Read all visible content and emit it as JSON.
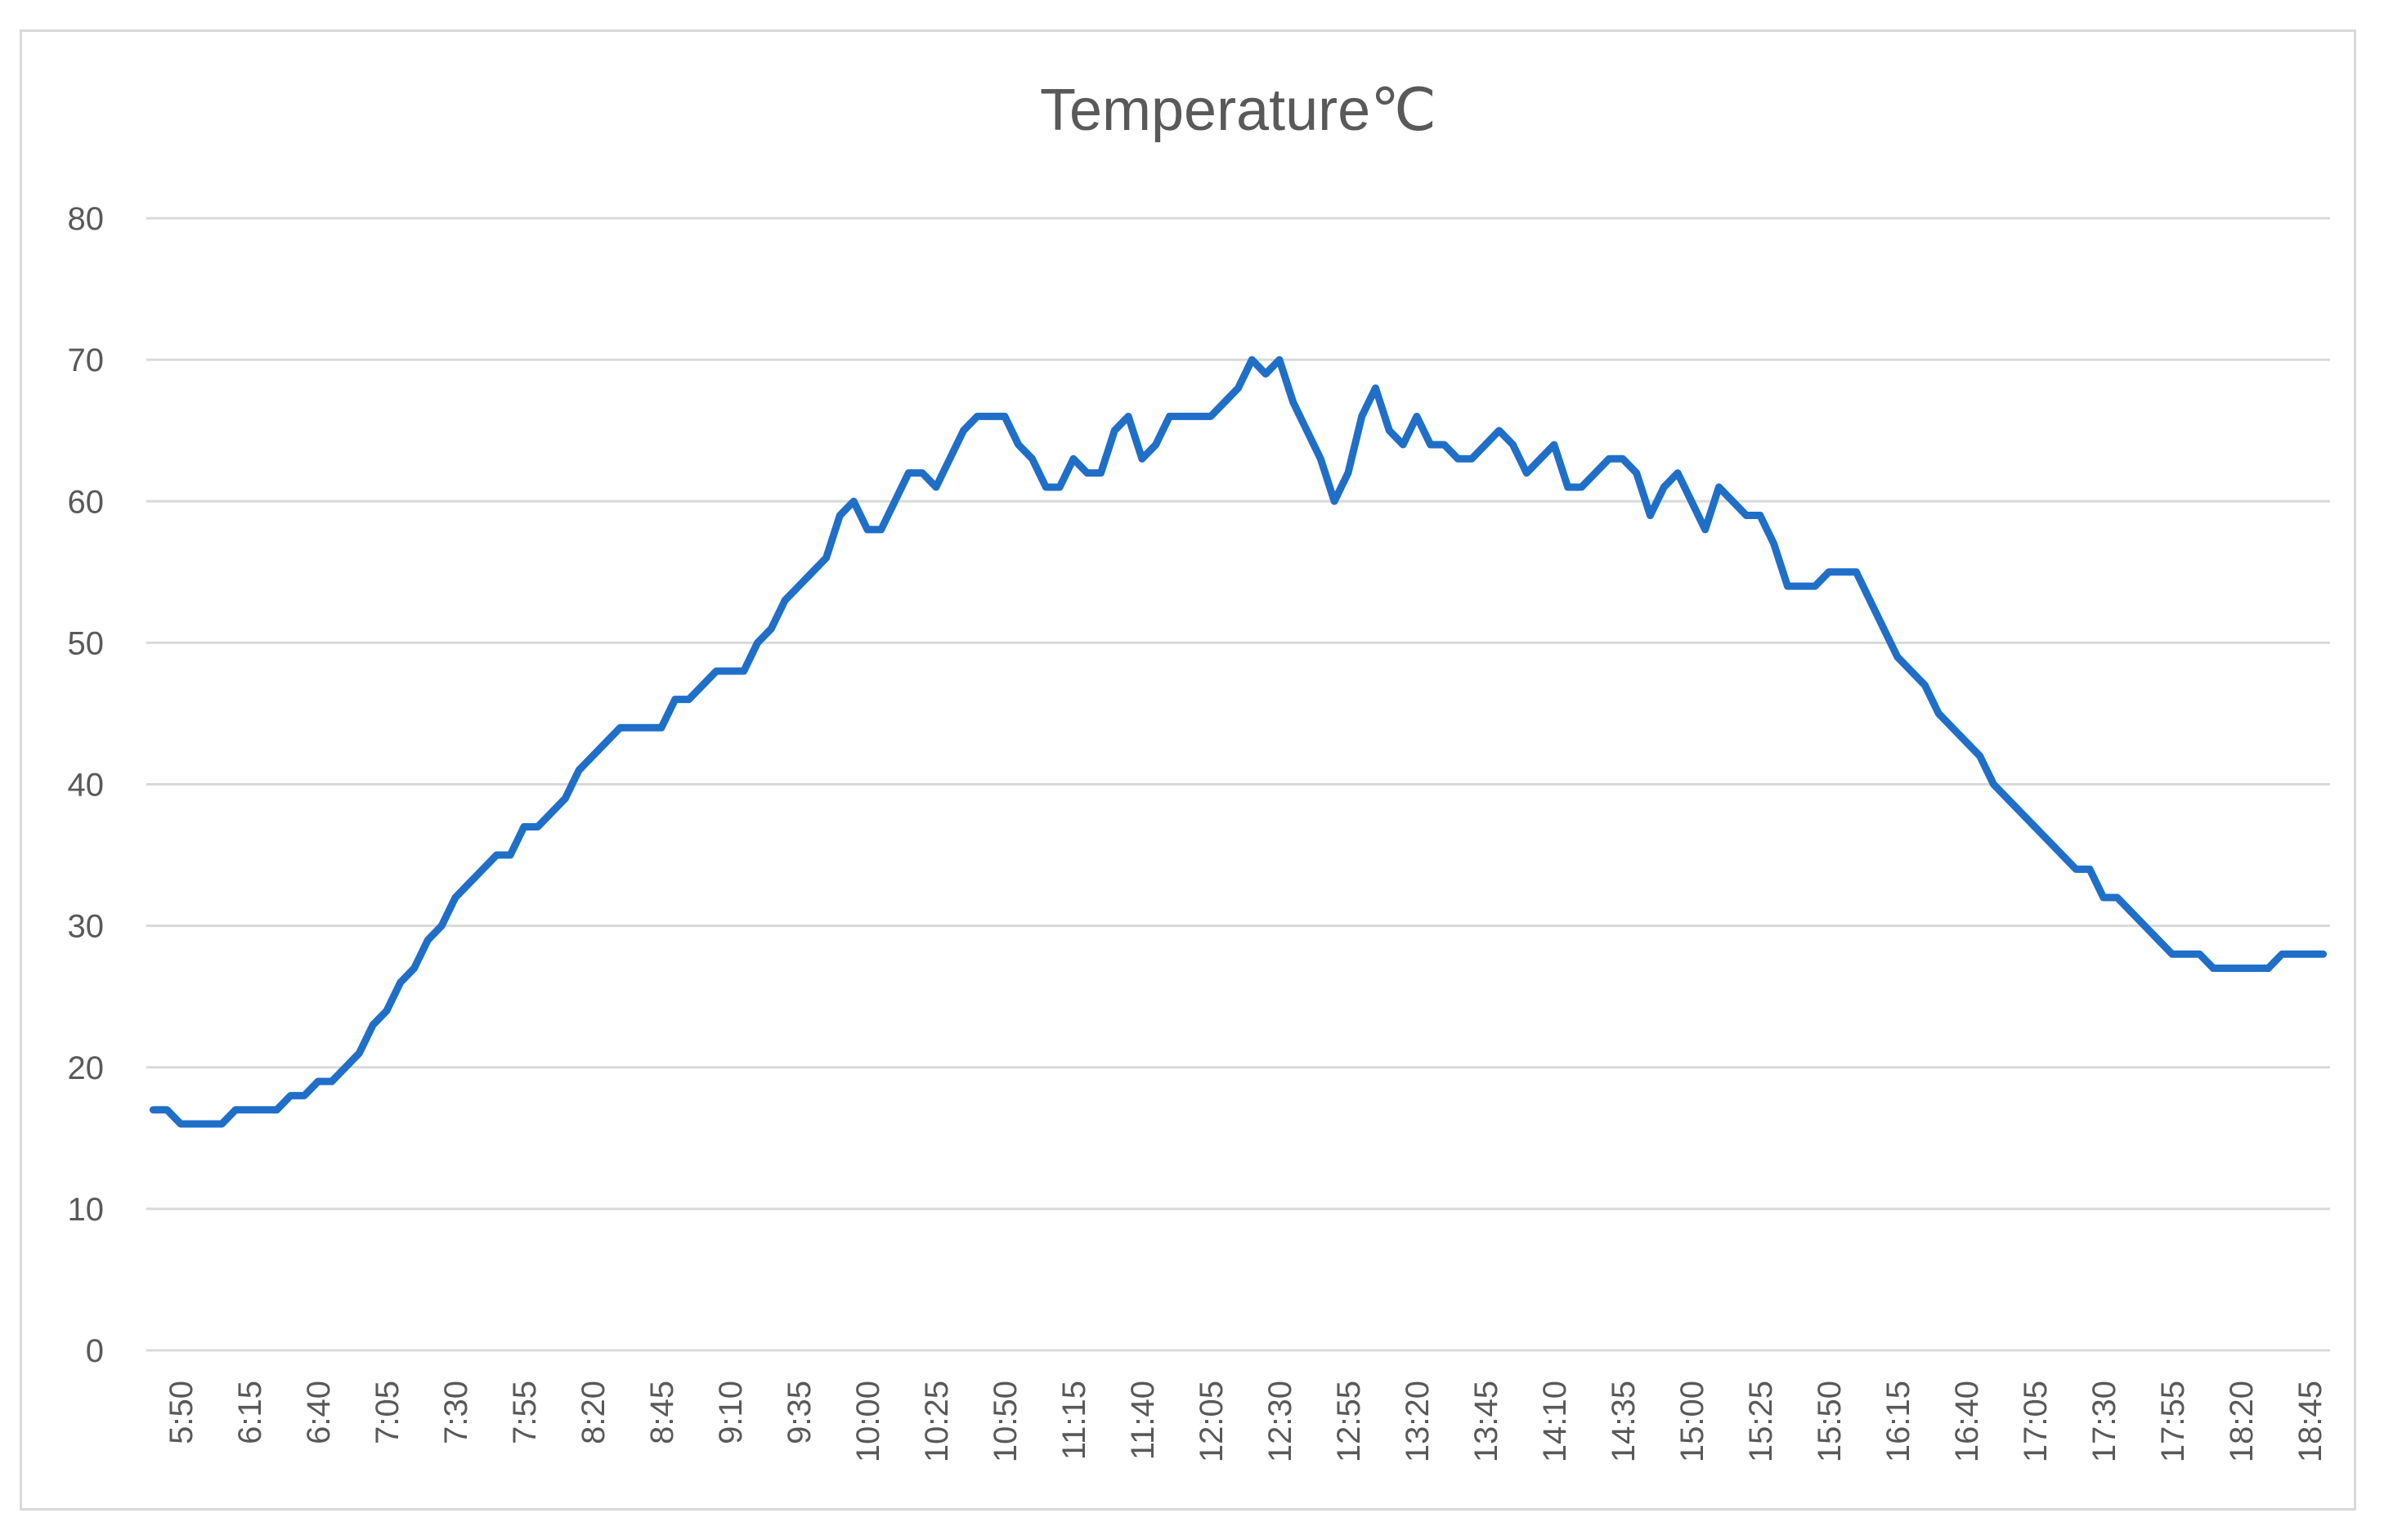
{
  "chart_data": {
    "type": "line",
    "title": "Temperature℃",
    "xlabel": "",
    "ylabel": "",
    "ylim": [
      0,
      80
    ],
    "yticks": [
      0,
      10,
      20,
      30,
      40,
      50,
      60,
      70,
      80
    ],
    "grid": true,
    "legend": "none",
    "line_color": "#1f6fc9",
    "x_tick_labels": [
      "5:50",
      "6:15",
      "6:40",
      "7:05",
      "7:30",
      "7:55",
      "8:20",
      "8:45",
      "9:10",
      "9:35",
      "10:00",
      "10:25",
      "10:50",
      "11:15",
      "11:40",
      "12:05",
      "12:30",
      "12:55",
      "13:20",
      "13:45",
      "14:10",
      "14:35",
      "15:00",
      "15:25",
      "15:50",
      "16:15",
      "16:40",
      "17:05",
      "17:30",
      "17:55",
      "18:20",
      "18:45"
    ],
    "x_tick_every": 5,
    "x": [
      "5:40",
      "5:45",
      "5:50",
      "5:55",
      "6:00",
      "6:05",
      "6:10",
      "6:15",
      "6:20",
      "6:25",
      "6:30",
      "6:35",
      "6:40",
      "6:45",
      "6:50",
      "6:55",
      "7:00",
      "7:05",
      "7:10",
      "7:15",
      "7:20",
      "7:25",
      "7:30",
      "7:35",
      "7:40",
      "7:45",
      "7:50",
      "7:55",
      "8:00",
      "8:05",
      "8:10",
      "8:15",
      "8:20",
      "8:25",
      "8:30",
      "8:35",
      "8:40",
      "8:45",
      "8:50",
      "8:55",
      "9:00",
      "9:05",
      "9:10",
      "9:15",
      "9:20",
      "9:25",
      "9:30",
      "9:35",
      "9:40",
      "9:45",
      "9:50",
      "9:55",
      "10:00",
      "10:05",
      "10:10",
      "10:15",
      "10:20",
      "10:25",
      "10:30",
      "10:35",
      "10:40",
      "10:45",
      "10:50",
      "10:55",
      "11:00",
      "11:05",
      "11:10",
      "11:15",
      "11:20",
      "11:25",
      "11:30",
      "11:35",
      "11:40",
      "11:45",
      "11:50",
      "11:55",
      "12:00",
      "12:05",
      "12:10",
      "12:15",
      "12:20",
      "12:25",
      "12:30",
      "12:35",
      "12:40",
      "12:45",
      "12:50",
      "12:55",
      "13:00",
      "13:05",
      "13:10",
      "13:15",
      "13:20",
      "13:25",
      "13:30",
      "13:35",
      "13:40",
      "13:45",
      "13:50",
      "13:55",
      "14:00",
      "14:05",
      "14:10",
      "14:15",
      "14:20",
      "14:25",
      "14:30",
      "14:35",
      "14:40",
      "14:45",
      "14:50",
      "14:55",
      "15:00",
      "15:05",
      "15:10",
      "15:15",
      "15:20",
      "15:25",
      "15:30",
      "15:35",
      "15:40",
      "15:45",
      "15:50",
      "15:55",
      "16:00",
      "16:05",
      "16:10",
      "16:15",
      "16:20",
      "16:25",
      "16:30",
      "16:35",
      "16:40",
      "16:45",
      "16:50",
      "16:55",
      "17:00",
      "17:05",
      "17:10",
      "17:15",
      "17:20",
      "17:25",
      "17:30",
      "17:35",
      "17:40",
      "17:45",
      "17:50",
      "17:55",
      "18:00",
      "18:05",
      "18:10",
      "18:15",
      "18:20",
      "18:25",
      "18:30",
      "18:35",
      "18:40",
      "18:45",
      "18:50"
    ],
    "series": [
      {
        "values": [
          17,
          17,
          16,
          16,
          16,
          16,
          17,
          17,
          17,
          17,
          18,
          18,
          19,
          19,
          20,
          21,
          23,
          24,
          26,
          27,
          29,
          30,
          32,
          33,
          34,
          35,
          35,
          37,
          37,
          38,
          39,
          41,
          42,
          43,
          44,
          44,
          44,
          44,
          46,
          46,
          47,
          48,
          48,
          48,
          50,
          51,
          53,
          54,
          55,
          56,
          59,
          60,
          58,
          58,
          60,
          62,
          62,
          61,
          63,
          65,
          66,
          66,
          66,
          64,
          63,
          61,
          61,
          63,
          62,
          62,
          65,
          66,
          63,
          64,
          66,
          66,
          66,
          66,
          67,
          68,
          70,
          69,
          70,
          67,
          65,
          63,
          60,
          62,
          66,
          68,
          65,
          64,
          66,
          64,
          64,
          63,
          63,
          64,
          65,
          64,
          62,
          63,
          64,
          61,
          61,
          62,
          63,
          63,
          62,
          59,
          61,
          62,
          60,
          58,
          61,
          60,
          59,
          59,
          57,
          54,
          54,
          54,
          55,
          55,
          55,
          53,
          51,
          49,
          48,
          47,
          45,
          44,
          43,
          42,
          40,
          39,
          38,
          37,
          36,
          35,
          34,
          34,
          32,
          32,
          31,
          30,
          29,
          28,
          28,
          28,
          27,
          27,
          27,
          27,
          27,
          28,
          28,
          28,
          28
        ]
      }
    ]
  }
}
